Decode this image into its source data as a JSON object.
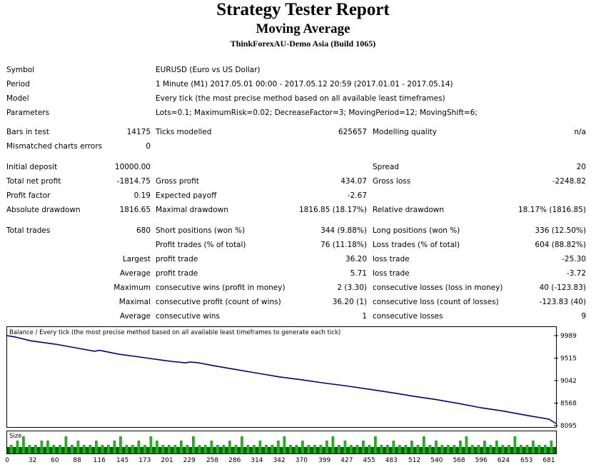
{
  "report": {
    "title": "Strategy Tester Report",
    "subtitle": "Moving Average",
    "server": "ThinkForexAU-Demo Asia (Build 1065)"
  },
  "info": {
    "symbol_label": "Symbol",
    "symbol_value": "EURUSD (Euro vs US Dollar)",
    "period_label": "Period",
    "period_value": "1 Minute (M1) 2017.05.01 00:00 - 2017.05.12 20:59 (2017.01.01 - 2017.05.14)",
    "model_label": "Model",
    "model_value": "Every tick (the most precise method based on all available least timeframes)",
    "params_label": "Parameters",
    "params_value": "Lots=0.1; MaximumRisk=0.02; DecreaseFactor=3; MovingPeriod=12; MovingShift=6;"
  },
  "stats": {
    "bars_label": "Bars in test",
    "bars_value": "14175",
    "ticks_label": "Ticks modelled",
    "ticks_value": "625657",
    "quality_label": "Modelling quality",
    "quality_value": "n/a",
    "mismatch_label": "Mismatched charts errors",
    "mismatch_value": "0",
    "deposit_label": "Initial deposit",
    "deposit_value": "10000.00",
    "spread_label": "Spread",
    "spread_value": "20",
    "netprofit_label": "Total net profit",
    "netprofit_value": "-1814.75",
    "grossprofit_label": "Gross profit",
    "grossprofit_value": "434.07",
    "grossloss_label": "Gross loss",
    "grossloss_value": "-2248.82",
    "pf_label": "Profit factor",
    "pf_value": "0.19",
    "ep_label": "Expected payoff",
    "ep_value": "-2.67",
    "absdd_label": "Absolute drawdown",
    "absdd_value": "1816.65",
    "maxdd_label": "Maximal drawdown",
    "maxdd_value": "1816.85 (18.17%)",
    "reldd_label": "Relative drawdown",
    "reldd_value": "18.17% (1816.85)",
    "trades_label": "Total trades",
    "trades_value": "680",
    "short_label": "Short positions (won %)",
    "short_value": "344 (9.88%)",
    "long_label": "Long positions (won %)",
    "long_value": "336 (12.50%)",
    "proftrades_label": "Profit trades (% of total)",
    "proftrades_value": "76 (11.18%)",
    "losstrades_label": "Loss trades (% of total)",
    "losstrades_value": "604 (88.82%)",
    "largest_label": "Largest",
    "lg_profit_label": "profit trade",
    "lg_profit_value": "36.20",
    "lg_loss_label": "loss trade",
    "lg_loss_value": "-25.30",
    "average_label": "Average",
    "avg_profit_label": "profit trade",
    "avg_profit_value": "5.71",
    "avg_loss_label": "loss trade",
    "avg_loss_value": "-3.72",
    "maximum_label": "Maximum",
    "max_wins_label": "consecutive wins (profit in money)",
    "max_wins_value": "2 (3.30)",
    "max_losses_label": "consecutive losses (loss in money)",
    "max_losses_value": "40 (-123.83)",
    "maximal_label": "Maximal",
    "mxl_profit_label": "consecutive profit (count of wins)",
    "mxl_profit_value": "36.20 (1)",
    "mxl_loss_label": "consecutive loss (count of losses)",
    "mxl_loss_value": "-123.83 (40)",
    "average2_label": "Average",
    "avg_wins_label": "consecutive wins",
    "avg_wins_value": "1",
    "avg_losses_label": "consecutive losses",
    "avg_losses_value": "9"
  },
  "chart_data": {
    "type": "line",
    "title": "Balance / Every tick (the most precise method based on all available least timeframes to generate each tick)",
    "size_label": "Size",
    "xlim": [
      0,
      690
    ],
    "ylim": [
      8095,
      9989
    ],
    "y_ticks": [
      "9989",
      "9515",
      "9042",
      "8568",
      "8095"
    ],
    "x_ticks": [
      "0",
      "32",
      "60",
      "88",
      "116",
      "145",
      "173",
      "201",
      "229",
      "258",
      "286",
      "314",
      "342",
      "370",
      "399",
      "427",
      "455",
      "483",
      "512",
      "540",
      "568",
      "596",
      "624",
      "653",
      "681"
    ],
    "series": [
      {
        "x": [
          0,
          10,
          30,
          60,
          90,
          110,
          116,
          140,
          170,
          200,
          210,
          225,
          229,
          240,
          258,
          286,
          314,
          342,
          370,
          399,
          427,
          455,
          483,
          512,
          540,
          568,
          596,
          624,
          653,
          681,
          690
        ],
        "y": [
          9989,
          9960,
          9880,
          9810,
          9720,
          9660,
          9680,
          9600,
          9530,
          9460,
          9440,
          9415,
          9435,
          9420,
          9360,
          9280,
          9200,
          9120,
          9060,
          8990,
          8930,
          8860,
          8790,
          8710,
          8640,
          8560,
          8470,
          8400,
          8310,
          8230,
          8140
        ]
      }
    ],
    "size_bars": {
      "total": 680,
      "sizes": [
        1,
        2,
        3,
        1,
        1,
        2,
        2,
        1,
        1,
        3,
        1,
        2,
        1,
        1,
        2,
        1,
        1,
        2,
        3,
        1,
        1,
        2,
        1,
        3,
        2,
        1,
        1,
        1,
        2,
        1,
        3,
        1,
        1,
        2,
        1,
        1,
        2,
        1,
        3,
        1,
        1,
        2,
        1,
        1,
        2,
        3,
        1,
        1,
        2,
        1,
        1,
        1,
        2,
        3,
        1,
        2,
        1,
        1,
        2,
        1,
        3,
        1,
        1,
        2,
        1,
        1,
        2,
        1,
        3,
        1,
        2,
        1,
        1,
        1,
        2,
        3,
        1,
        1,
        2,
        1,
        2,
        1,
        1,
        3,
        1,
        1,
        2,
        1,
        1,
        2
      ]
    }
  },
  "colors": {
    "line": "#00008b",
    "bars": "#22b022",
    "bar_bg": "#006400"
  }
}
